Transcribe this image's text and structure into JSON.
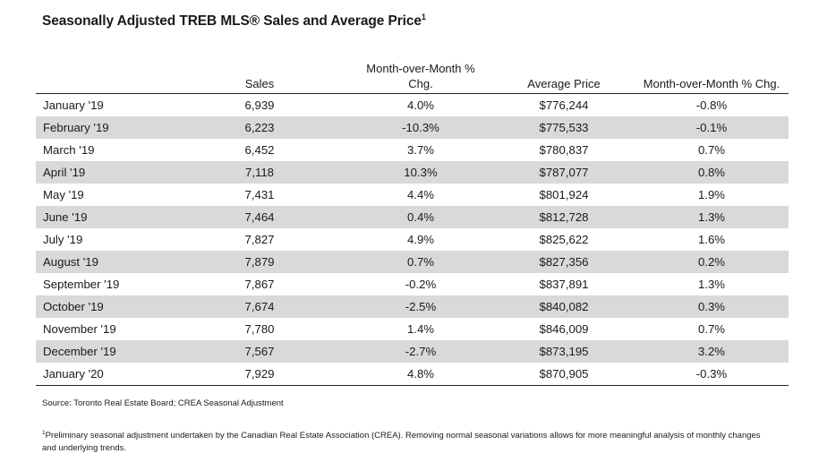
{
  "title": "Seasonally Adjusted TREB MLS® Sales and Average Price",
  "title_sup": "1",
  "headers": {
    "sales": "Sales",
    "mom_sales_line1": "Month-over-Month %",
    "mom_sales_line2": "Chg.",
    "avg_price": "Average Price",
    "mom_price": "Month-over-Month % Chg."
  },
  "rows": [
    {
      "month": "January '19",
      "sales": "6,939",
      "mom_sales": "4.0%",
      "price": "$776,244",
      "mom_price": "-0.8%"
    },
    {
      "month": "February '19",
      "sales": "6,223",
      "mom_sales": "-10.3%",
      "price": "$775,533",
      "mom_price": "-0.1%"
    },
    {
      "month": "March '19",
      "sales": "6,452",
      "mom_sales": "3.7%",
      "price": "$780,837",
      "mom_price": "0.7%"
    },
    {
      "month": "April '19",
      "sales": "7,118",
      "mom_sales": "10.3%",
      "price": "$787,077",
      "mom_price": "0.8%"
    },
    {
      "month": "May '19",
      "sales": "7,431",
      "mom_sales": "4.4%",
      "price": "$801,924",
      "mom_price": "1.9%"
    },
    {
      "month": "June '19",
      "sales": "7,464",
      "mom_sales": "0.4%",
      "price": "$812,728",
      "mom_price": "1.3%"
    },
    {
      "month": "July '19",
      "sales": "7,827",
      "mom_sales": "4.9%",
      "price": "$825,622",
      "mom_price": "1.6%"
    },
    {
      "month": "August '19",
      "sales": "7,879",
      "mom_sales": "0.7%",
      "price": "$827,356",
      "mom_price": "0.2%"
    },
    {
      "month": "September '19",
      "sales": "7,867",
      "mom_sales": "-0.2%",
      "price": "$837,891",
      "mom_price": "1.3%"
    },
    {
      "month": "October '19",
      "sales": "7,674",
      "mom_sales": "-2.5%",
      "price": "$840,082",
      "mom_price": "0.3%"
    },
    {
      "month": "November '19",
      "sales": "7,780",
      "mom_sales": "1.4%",
      "price": "$846,009",
      "mom_price": "0.7%"
    },
    {
      "month": "December '19",
      "sales": "7,567",
      "mom_sales": "-2.7%",
      "price": "$873,195",
      "mom_price": "3.2%"
    },
    {
      "month": "January '20",
      "sales": "7,929",
      "mom_sales": "4.8%",
      "price": "$870,905",
      "mom_price": "-0.3%"
    }
  ],
  "source": "Source: Toronto Real Estate Board; CREA Seasonal Adjustment",
  "footnote_marker": "1",
  "footnote": "Preliminary seasonal adjustment undertaken by the Canadian Real Estate Association (CREA).  Removing normal seasonal variations allows for more meaningful analysis of monthly changes and underlying trends."
}
